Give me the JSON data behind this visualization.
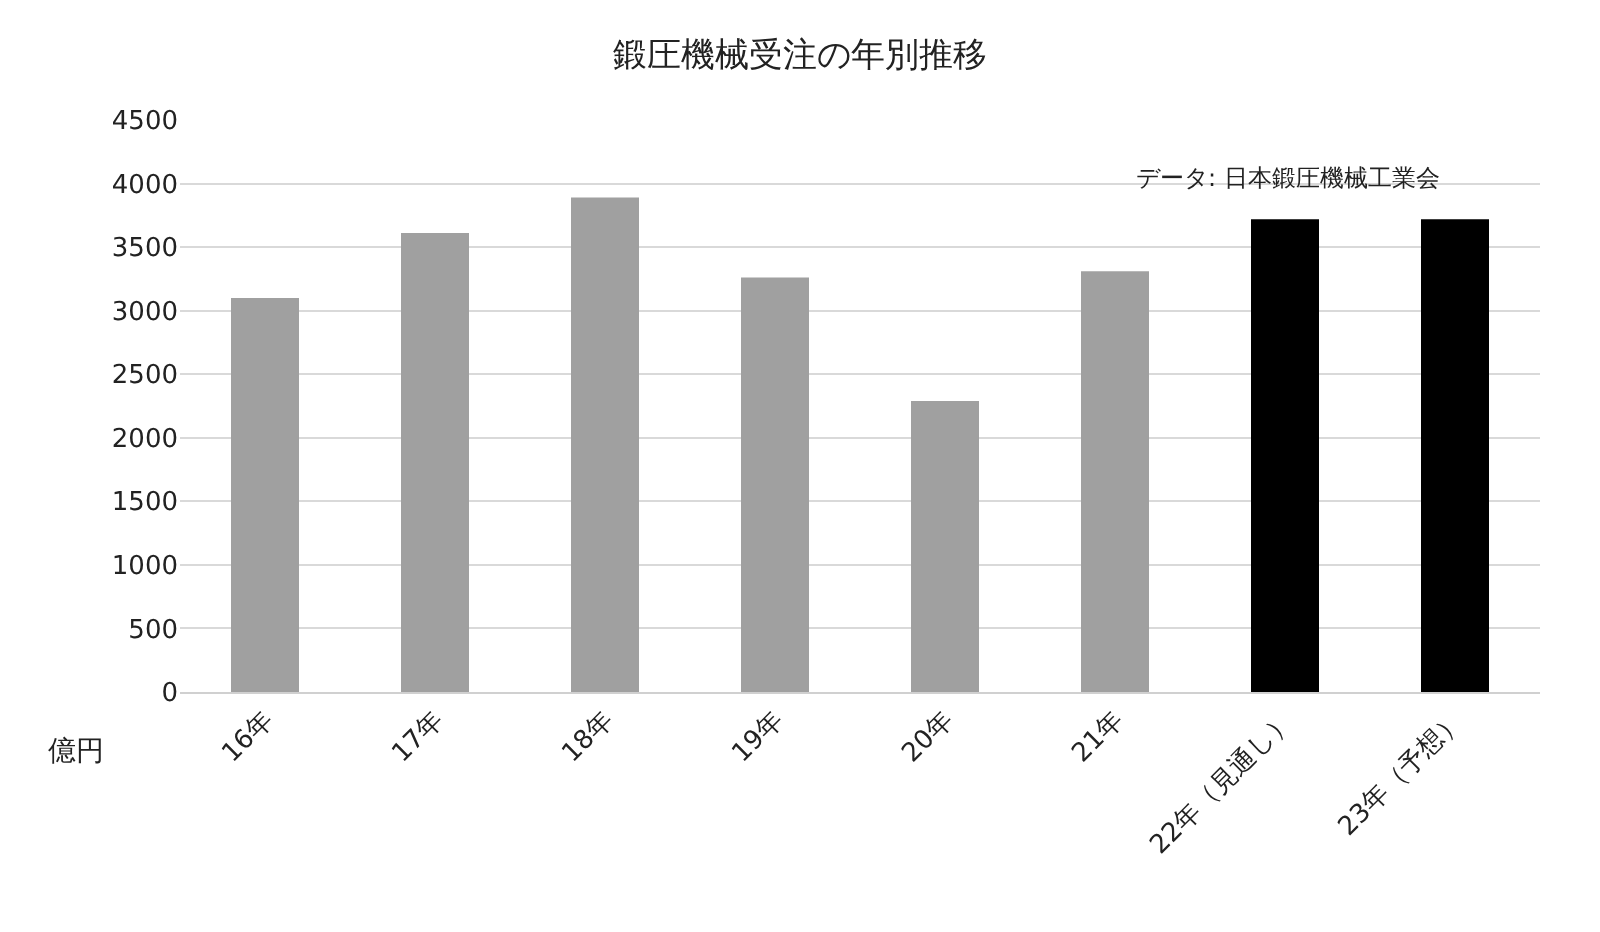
{
  "chart_data": {
    "type": "bar",
    "title": "鍛圧機械受注の年別推移",
    "ylabel": "億円",
    "categories": [
      "16年",
      "17年",
      "18年",
      "19年",
      "20年",
      "21年",
      "22年（見通し）",
      "23年（予想）"
    ],
    "values": [
      3100,
      3610,
      3890,
      3260,
      2290,
      3310,
      3720,
      3720
    ],
    "colors": [
      "#a0a0a0",
      "#a0a0a0",
      "#a0a0a0",
      "#a0a0a0",
      "#a0a0a0",
      "#a0a0a0",
      "#000000",
      "#000000"
    ],
    "ylim": [
      0,
      4500
    ],
    "yticks": [
      0,
      500,
      1000,
      1500,
      2000,
      2500,
      3000,
      3500,
      4000,
      4500
    ],
    "grid": "y",
    "annotations": [
      "データ: 日本鍛圧機械工業会"
    ]
  }
}
